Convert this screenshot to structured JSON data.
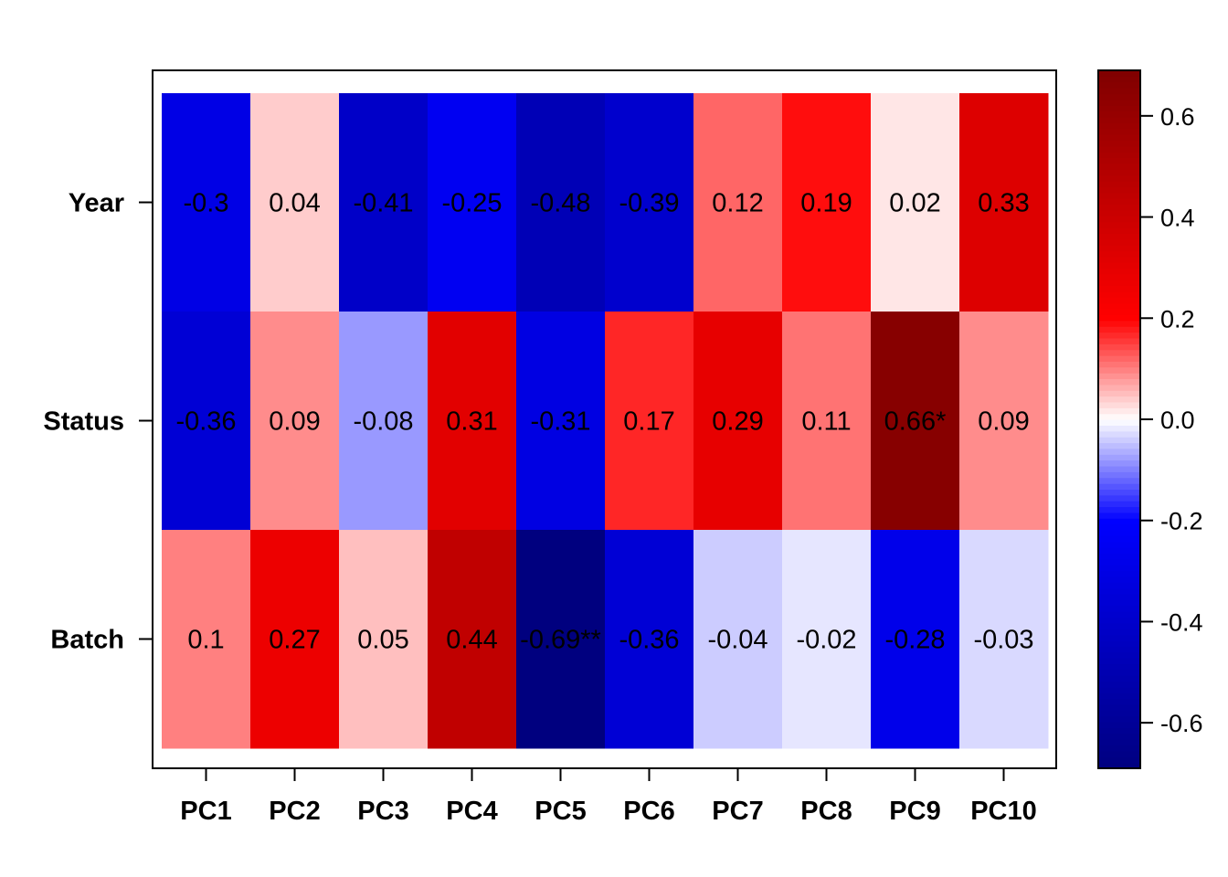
{
  "chart_data": {
    "type": "heatmap",
    "title": "",
    "xlabel": "",
    "ylabel": "",
    "x_categories": [
      "PC1",
      "PC2",
      "PC3",
      "PC4",
      "PC5",
      "PC6",
      "PC7",
      "PC8",
      "PC9",
      "PC10"
    ],
    "y_categories": [
      "Year",
      "Status",
      "Batch"
    ],
    "values": [
      [
        -0.3,
        0.04,
        -0.41,
        -0.25,
        -0.48,
        -0.39,
        0.12,
        0.19,
        0.02,
        0.33
      ],
      [
        -0.36,
        0.09,
        -0.08,
        0.31,
        -0.31,
        0.17,
        0.29,
        0.11,
        0.66,
        0.09
      ],
      [
        0.1,
        0.27,
        0.05,
        0.44,
        -0.69,
        -0.36,
        -0.04,
        -0.02,
        -0.28,
        -0.03
      ]
    ],
    "labels": [
      [
        "-0.3",
        "0.04",
        "-0.41",
        "-0.25",
        "-0.48",
        "-0.39",
        "0.12",
        "0.19",
        "0.02",
        "0.33"
      ],
      [
        "-0.36",
        "0.09",
        "-0.08",
        "0.31",
        "-0.31",
        "0.17",
        "0.29",
        "0.11",
        "0.66*",
        "0.09"
      ],
      [
        "0.1",
        "0.27",
        "0.05",
        "0.44",
        "-0.69**",
        "-0.36",
        "-0.04",
        "-0.02",
        "-0.28",
        "-0.03"
      ]
    ],
    "colorbar": {
      "range": [
        -0.69,
        0.69
      ],
      "ticks": [
        -0.6,
        -0.4,
        -0.2,
        0.0,
        0.2,
        0.4,
        0.6
      ],
      "tick_labels": [
        "-0.6",
        "-0.4",
        "-0.2",
        "0.0",
        "0.2",
        "0.4",
        "0.6"
      ],
      "colors": {
        "low_dark": "#00007f",
        "low": "#0000ff",
        "mid": "#ffffff",
        "high": "#ff0000",
        "high_dark": "#7f0000"
      }
    },
    "grid": false,
    "legend": "right"
  }
}
